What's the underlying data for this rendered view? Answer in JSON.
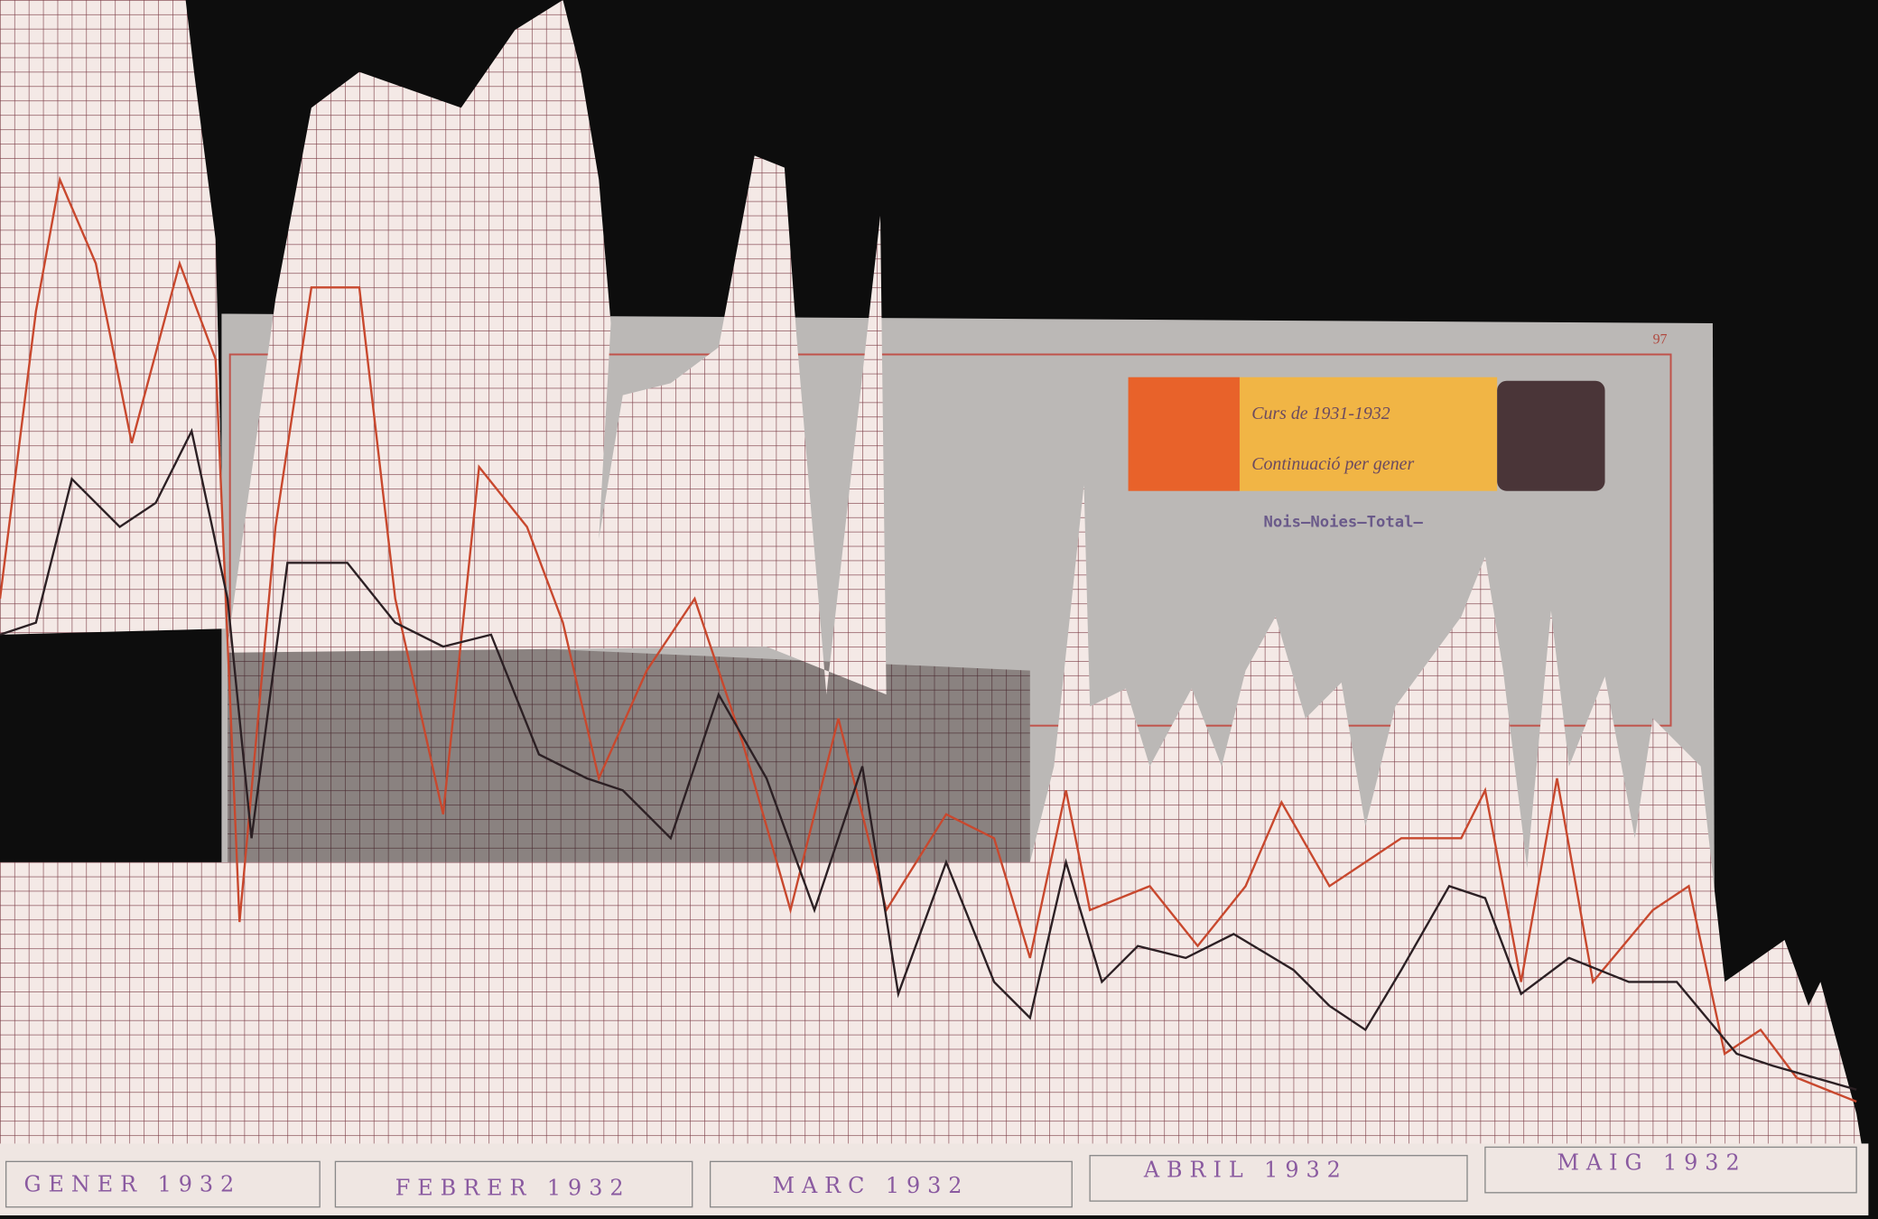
{
  "header": {
    "page_number": "97"
  },
  "legend": {
    "handwritten": [
      "Curs de 1931-1932",
      "Continuació per gener"
    ],
    "caption": "Nois—Noies—Total—"
  },
  "months": [
    "GENER 1932",
    "FEBRER 1932",
    "MARC 1932",
    "ABRIL 1932",
    "MAIG 1932"
  ]
}
